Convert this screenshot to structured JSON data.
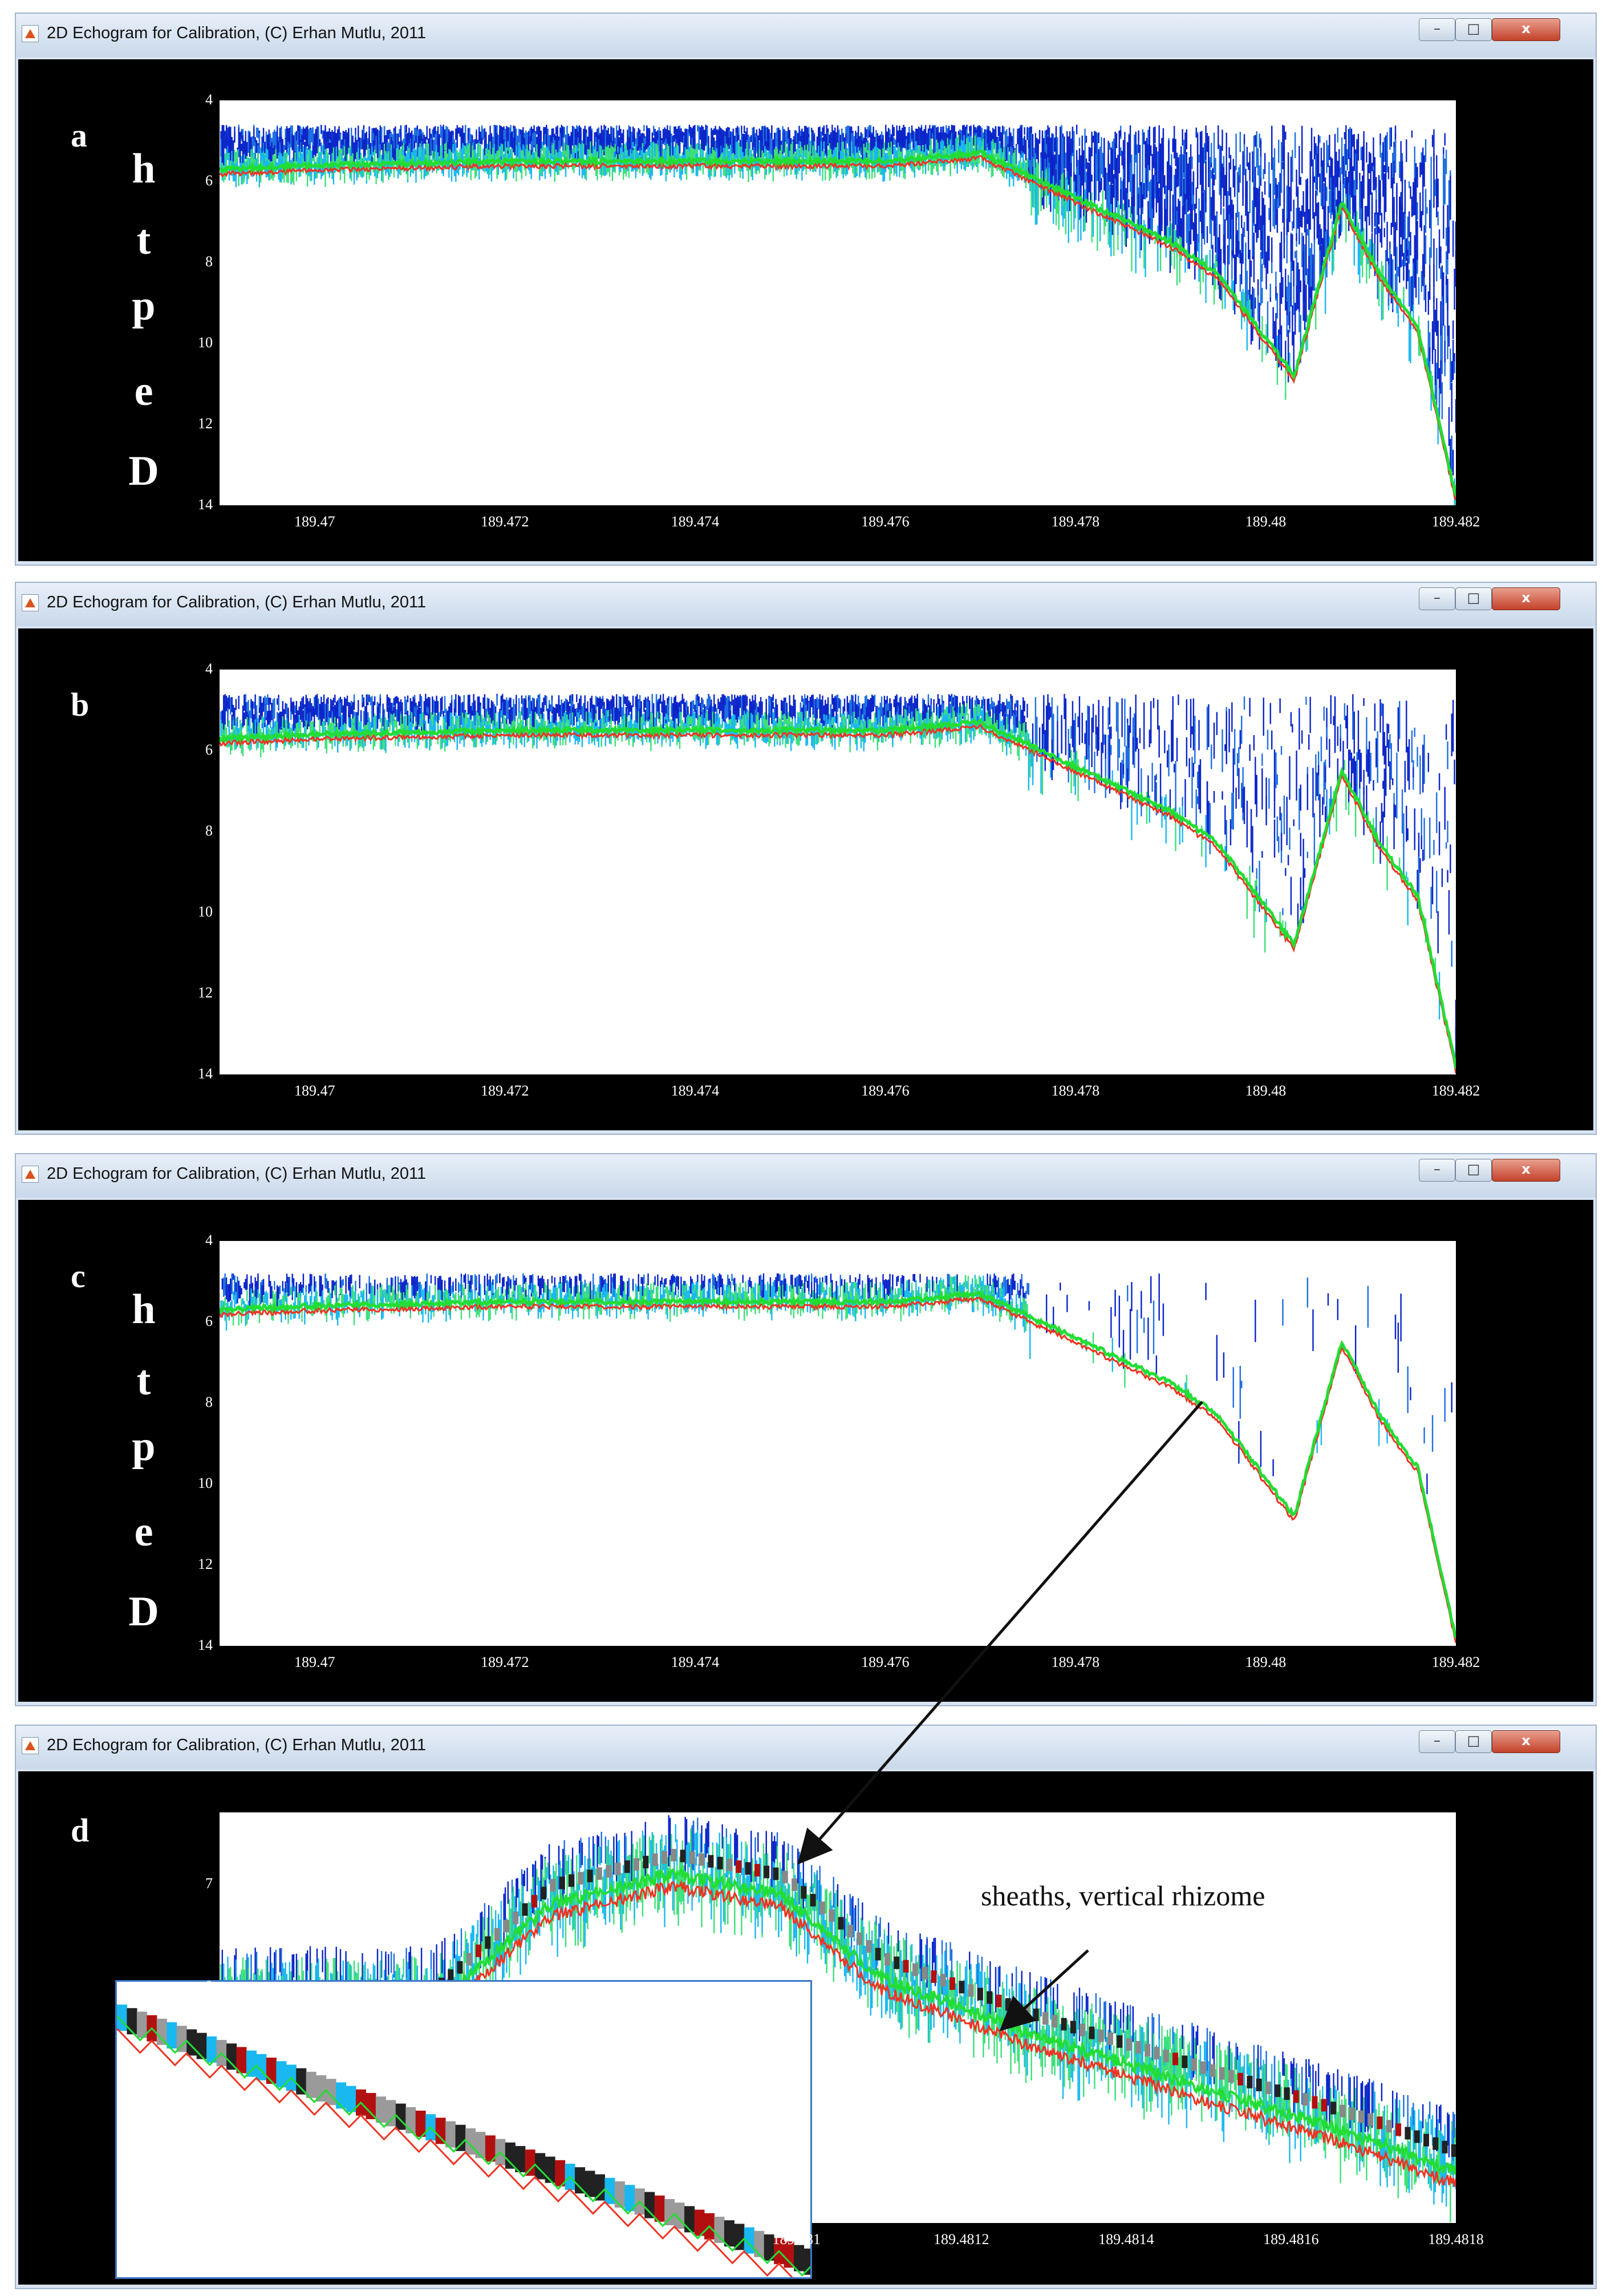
{
  "window_title": "2D Echogram for Calibration, (C) Erhan Mutlu, 2011",
  "window_controls": {
    "minimize": "–",
    "maximize": "□",
    "close": "x"
  },
  "ylabel_letters": [
    "D",
    "e",
    "p",
    "t",
    "h"
  ],
  "colors": {
    "background": "#000000",
    "plot": "#ffffff",
    "bottom_line_green": "#22dd33",
    "bottom_line_red": "#ee3322",
    "scatter_blue": "#0a24c8",
    "scatter_cyan": "#19b8f0",
    "inset_border": "#3a78c8"
  },
  "panels": [
    {
      "letter": "a",
      "show_ylabel": true,
      "chart_data": {
        "type": "heatmap",
        "xlim": [
          189.469,
          189.482
        ],
        "ylim": [
          4,
          14
        ],
        "y_inverted": true,
        "xticks": [
          "189.47",
          "189.472",
          "189.474",
          "189.476",
          "189.478",
          "189.48",
          "189.482"
        ],
        "xtick_values": [
          189.47,
          189.472,
          189.474,
          189.476,
          189.478,
          189.48,
          189.482
        ],
        "yticks": [
          "4",
          "6",
          "8",
          "10",
          "12",
          "14"
        ],
        "ytick_values": [
          4,
          6,
          8,
          10,
          12,
          14
        ],
        "bottom_x": [
          189.469,
          189.47,
          189.472,
          189.474,
          189.476,
          189.477,
          189.478,
          189.479,
          189.4795,
          189.4803,
          189.4808,
          189.4812,
          189.4816,
          189.482
        ],
        "bottom_depth": [
          5.7,
          5.6,
          5.5,
          5.5,
          5.5,
          5.3,
          6.4,
          7.5,
          8.3,
          10.8,
          6.5,
          8.3,
          9.6,
          13.8
        ],
        "scatter_top_depth": 4.6,
        "scatter_density": 0.85
      }
    },
    {
      "letter": "b",
      "show_ylabel": false,
      "chart_data": {
        "type": "heatmap",
        "xlim": [
          189.469,
          189.482
        ],
        "ylim": [
          4,
          14
        ],
        "y_inverted": true,
        "xticks": [
          "189.47",
          "189.472",
          "189.474",
          "189.476",
          "189.478",
          "189.48",
          "189.482"
        ],
        "xtick_values": [
          189.47,
          189.472,
          189.474,
          189.476,
          189.478,
          189.48,
          189.482
        ],
        "yticks": [
          "4",
          "6",
          "8",
          "10",
          "12",
          "14"
        ],
        "ytick_values": [
          4,
          6,
          8,
          10,
          12,
          14
        ],
        "bottom_x": [
          189.469,
          189.47,
          189.472,
          189.474,
          189.476,
          189.477,
          189.478,
          189.479,
          189.4795,
          189.4803,
          189.4808,
          189.4812,
          189.4816,
          189.482
        ],
        "bottom_depth": [
          5.7,
          5.6,
          5.5,
          5.5,
          5.5,
          5.3,
          6.4,
          7.5,
          8.3,
          10.8,
          6.5,
          8.3,
          9.6,
          13.8
        ],
        "scatter_top_depth": 4.6,
        "scatter_density": 0.45
      }
    },
    {
      "letter": "c",
      "show_ylabel": true,
      "chart_data": {
        "type": "heatmap",
        "xlim": [
          189.469,
          189.482
        ],
        "ylim": [
          4,
          14
        ],
        "y_inverted": true,
        "xticks": [
          "189.47",
          "189.472",
          "189.474",
          "189.476",
          "189.478",
          "189.48",
          "189.482"
        ],
        "xtick_values": [
          189.47,
          189.472,
          189.474,
          189.476,
          189.478,
          189.48,
          189.482
        ],
        "yticks": [
          "4",
          "6",
          "8",
          "10",
          "12",
          "14"
        ],
        "ytick_values": [
          4,
          6,
          8,
          10,
          12,
          14
        ],
        "bottom_x": [
          189.469,
          189.47,
          189.472,
          189.474,
          189.476,
          189.477,
          189.478,
          189.479,
          189.4795,
          189.4803,
          189.4808,
          189.4812,
          189.4816,
          189.482
        ],
        "bottom_depth": [
          5.7,
          5.6,
          5.5,
          5.5,
          5.5,
          5.3,
          6.4,
          7.5,
          8.3,
          10.8,
          6.5,
          8.3,
          9.6,
          13.8
        ],
        "scatter_top_depth": 4.8,
        "scatter_density": 0.2
      }
    },
    {
      "letter": "d",
      "show_ylabel": false,
      "chart_data": {
        "type": "heatmap",
        "xlim": [
          189.4803,
          189.4818
        ],
        "ylim": [
          6.3,
          10.3
        ],
        "y_inverted": true,
        "xticks": [
          "189.481",
          "189.4812",
          "189.4814",
          "189.4816",
          "189.4818"
        ],
        "xtick_values": [
          189.481,
          189.4812,
          189.4814,
          189.4816,
          189.4818
        ],
        "yticks": [
          "7",
          "8"
        ],
        "ytick_values": [
          7,
          8
        ],
        "bottom_x": [
          189.48056,
          189.4807,
          189.48085,
          189.48098,
          189.4811,
          189.4813,
          189.4815,
          189.4817,
          189.4818
        ],
        "bottom_depth": [
          8.2,
          7.2,
          6.9,
          7.1,
          7.9,
          8.5,
          9.0,
          9.5,
          9.8
        ],
        "annotation": "sheaths, vertical rhizome"
      }
    }
  ]
}
